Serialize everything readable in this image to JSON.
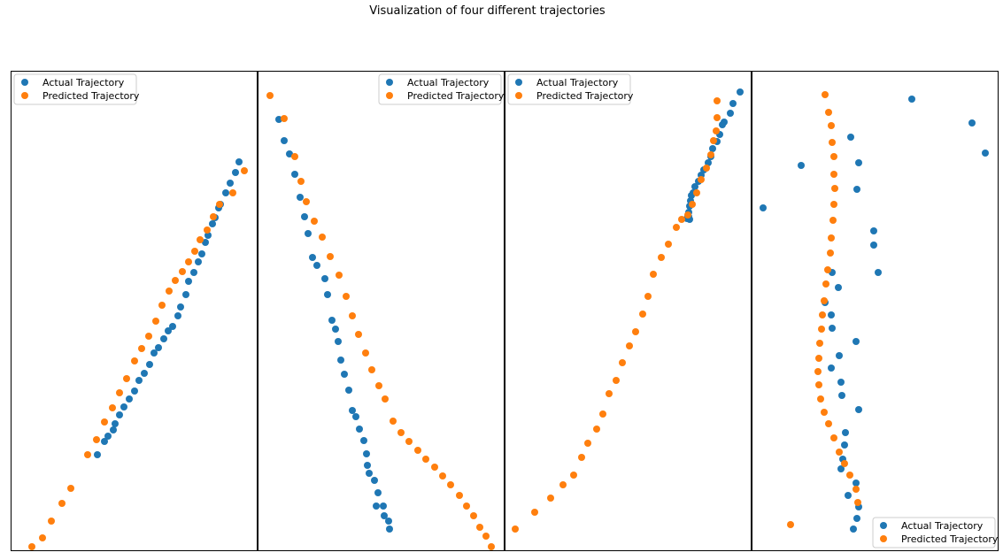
{
  "figure": {
    "title": "Visualization of four different trajectories"
  },
  "colors": {
    "actual": "#1f77b4",
    "predicted": "#ff7f0e",
    "frame": "#000000",
    "legend_border": "#cccccc"
  },
  "chart_data": [
    {
      "type": "scatter",
      "title": "",
      "xlabel": "",
      "ylabel": "",
      "grid": false,
      "ticks": false,
      "legend": "upper left",
      "xlim": [
        0,
        279
      ],
      "ylim": [
        0,
        543
      ],
      "series": [
        {
          "name": "Actual Trajectory",
          "points": [
            [
              258,
              440
            ],
            [
              254,
              428
            ],
            [
              248,
              416
            ],
            [
              243,
              405
            ],
            [
              237,
              392
            ],
            [
              235,
              388
            ],
            [
              231,
              377
            ],
            [
              228,
              370
            ],
            [
              223,
              357
            ],
            [
              220,
              349
            ],
            [
              216,
              336
            ],
            [
              212,
              327
            ],
            [
              207,
              315
            ],
            [
              201,
              305
            ],
            [
              198,
              290
            ],
            [
              192,
              276
            ],
            [
              189,
              266
            ],
            [
              183,
              254
            ],
            [
              178,
              249
            ],
            [
              173,
              240
            ],
            [
              167,
              230
            ],
            [
              162,
              224
            ],
            [
              157,
              211
            ],
            [
              151,
              201
            ],
            [
              145,
              193
            ],
            [
              140,
              181
            ],
            [
              134,
              172
            ],
            [
              128,
              163
            ],
            [
              123,
              154
            ],
            [
              118,
              144
            ],
            [
              116,
              137
            ],
            [
              110,
              130
            ],
            [
              106,
              124
            ],
            [
              98,
              109
            ]
          ]
        },
        {
          "name": "Predicted Trajectory",
          "points": [
            [
              264,
              430
            ],
            [
              251,
              405
            ],
            [
              236,
              392
            ],
            [
              229,
              378
            ],
            [
              222,
              363
            ],
            [
              214,
              352
            ],
            [
              208,
              339
            ],
            [
              201,
              327
            ],
            [
              194,
              316
            ],
            [
              186,
              306
            ],
            [
              179,
              294
            ],
            [
              171,
              278
            ],
            [
              164,
              260
            ],
            [
              156,
              243
            ],
            [
              148,
              229
            ],
            [
              140,
              215
            ],
            [
              131,
              195
            ],
            [
              123,
              179
            ],
            [
              115,
              162
            ],
            [
              106,
              146
            ],
            [
              97,
              126
            ],
            [
              87,
              109
            ],
            [
              68,
              71
            ],
            [
              58,
              54
            ],
            [
              46,
              34
            ],
            [
              36,
              15
            ],
            [
              24,
              5
            ]
          ]
        }
      ]
    },
    {
      "type": "scatter",
      "title": "",
      "xlabel": "",
      "ylabel": "",
      "grid": false,
      "ticks": false,
      "legend": "upper right",
      "xlim": [
        0,
        279
      ],
      "ylim": [
        0,
        543
      ],
      "series": [
        {
          "name": "Actual Trajectory",
          "points": [
            [
              24,
              488
            ],
            [
              30,
              464
            ],
            [
              36,
              449
            ],
            [
              42,
              426
            ],
            [
              48,
              400
            ],
            [
              53,
              378
            ],
            [
              57,
              359
            ],
            [
              62,
              332
            ],
            [
              67,
              323
            ],
            [
              76,
              308
            ],
            [
              79,
              290
            ],
            [
              84,
              261
            ],
            [
              88,
              251
            ],
            [
              91,
              237
            ],
            [
              94,
              216
            ],
            [
              98,
              200
            ],
            [
              103,
              182
            ],
            [
              107,
              159
            ],
            [
              111,
              152
            ],
            [
              115,
              138
            ],
            [
              120,
              125
            ],
            [
              123,
              110
            ],
            [
              124,
              97
            ],
            [
              126,
              88
            ],
            [
              132,
              80
            ],
            [
              136,
              66
            ],
            [
              134,
              51
            ],
            [
              142,
              51
            ],
            [
              143,
              40
            ],
            [
              148,
              34
            ],
            [
              149,
              25
            ]
          ]
        },
        {
          "name": "Predicted Trajectory",
          "points": [
            [
              14,
              515
            ],
            [
              30,
              489
            ],
            [
              42,
              446
            ],
            [
              49,
              418
            ],
            [
              55,
              395
            ],
            [
              64,
              373
            ],
            [
              73,
              355
            ],
            [
              82,
              333
            ],
            [
              92,
              312
            ],
            [
              100,
              288
            ],
            [
              107,
              266
            ],
            [
              114,
              245
            ],
            [
              122,
              224
            ],
            [
              129,
              205
            ],
            [
              137,
              187
            ],
            [
              144,
              172
            ],
            [
              153,
              147
            ],
            [
              162,
              134
            ],
            [
              171,
              124
            ],
            [
              181,
              114
            ],
            [
              190,
              104
            ],
            [
              200,
              95
            ],
            [
              209,
              85
            ],
            [
              218,
              75
            ],
            [
              228,
              63
            ],
            [
              236,
              51
            ],
            [
              244,
              40
            ],
            [
              251,
              27
            ],
            [
              258,
              17
            ],
            [
              264,
              5
            ]
          ]
        }
      ]
    },
    {
      "type": "scatter",
      "title": "",
      "xlabel": "",
      "ylabel": "",
      "grid": false,
      "ticks": false,
      "legend": "upper left",
      "xlim": [
        0,
        279
      ],
      "ylim": [
        0,
        543
      ],
      "series": [
        {
          "name": "Actual Trajectory",
          "points": [
            [
              266,
              519
            ],
            [
              258,
              506
            ],
            [
              255,
              495
            ],
            [
              248,
              485
            ],
            [
              246,
              482
            ],
            [
              243,
              471
            ],
            [
              240,
              463
            ],
            [
              235,
              455
            ],
            [
              233,
              446
            ],
            [
              230,
              439
            ],
            [
              225,
              431
            ],
            [
              222,
              425
            ],
            [
              219,
              418
            ],
            [
              215,
              412
            ],
            [
              213,
              405
            ],
            [
              211,
              402
            ],
            [
              210,
              396
            ],
            [
              209,
              390
            ],
            [
              208,
              383
            ],
            [
              207,
              379
            ],
            [
              209,
              375
            ],
            [
              206,
              376
            ],
            [
              208,
              378
            ]
          ]
        },
        {
          "name": "Predicted Trajectory",
          "points": [
            [
              240,
              509
            ],
            [
              240,
              490
            ],
            [
              239,
              475
            ],
            [
              236,
              464
            ],
            [
              233,
              448
            ],
            [
              228,
              433
            ],
            [
              222,
              420
            ],
            [
              217,
              405
            ],
            [
              212,
              392
            ],
            [
              207,
              380
            ],
            [
              200,
              375
            ],
            [
              194,
              366
            ],
            [
              185,
              347
            ],
            [
              177,
              332
            ],
            [
              168,
              313
            ],
            [
              162,
              288
            ],
            [
              156,
              268
            ],
            [
              148,
              248
            ],
            [
              141,
              232
            ],
            [
              133,
              213
            ],
            [
              126,
              193
            ],
            [
              118,
              178
            ],
            [
              111,
              155
            ],
            [
              104,
              138
            ],
            [
              94,
              122
            ],
            [
              87,
              106
            ],
            [
              78,
              86
            ],
            [
              66,
              75
            ],
            [
              52,
              60
            ],
            [
              34,
              44
            ],
            [
              12,
              25
            ]
          ]
        }
      ]
    },
    {
      "type": "scatter",
      "title": "",
      "xlabel": "",
      "ylabel": "",
      "grid": false,
      "ticks": false,
      "legend": "lower right",
      "xlim": [
        0,
        279
      ],
      "ylim": [
        0,
        543
      ],
      "series": [
        {
          "name": "Actual Trajectory",
          "points": [
            [
              181,
              511
            ],
            [
              249,
              484
            ],
            [
              264,
              450
            ],
            [
              112,
              468
            ],
            [
              121,
              439
            ],
            [
              56,
              436
            ],
            [
              13,
              388
            ],
            [
              119,
              409
            ],
            [
              138,
              362
            ],
            [
              138,
              346
            ],
            [
              143,
              315
            ],
            [
              91,
              315
            ],
            [
              83,
              281
            ],
            [
              98,
              298
            ],
            [
              90,
              267
            ],
            [
              91,
              252
            ],
            [
              118,
              237
            ],
            [
              99,
              221
            ],
            [
              90,
              207
            ],
            [
              101,
              191
            ],
            [
              102,
              176
            ],
            [
              121,
              160
            ],
            [
              106,
              134
            ],
            [
              105,
              120
            ],
            [
              103,
              104
            ],
            [
              101,
              93
            ],
            [
              118,
              77
            ],
            [
              109,
              63
            ],
            [
              121,
              50
            ],
            [
              119,
              37
            ],
            [
              115,
              25
            ]
          ]
        },
        {
          "name": "Predicted Trajectory",
          "points": [
            [
              83,
              516
            ],
            [
              87,
              496
            ],
            [
              90,
              481
            ],
            [
              91,
              462
            ],
            [
              93,
              446
            ],
            [
              93,
              426
            ],
            [
              94,
              410
            ],
            [
              93,
              392
            ],
            [
              92,
              374
            ],
            [
              90,
              354
            ],
            [
              89,
              337
            ],
            [
              86,
              318
            ],
            [
              84,
              302
            ],
            [
              82,
              283
            ],
            [
              80,
              267
            ],
            [
              79,
              251
            ],
            [
              77,
              235
            ],
            [
              76,
              218
            ],
            [
              75,
              203
            ],
            [
              76,
              188
            ],
            [
              78,
              172
            ],
            [
              82,
              157
            ],
            [
              87,
              144
            ],
            [
              93,
              128
            ],
            [
              99,
              112
            ],
            [
              105,
              99
            ],
            [
              111,
              86
            ],
            [
              118,
              70
            ],
            [
              120,
              55
            ],
            [
              44,
              30
            ]
          ]
        }
      ]
    }
  ]
}
